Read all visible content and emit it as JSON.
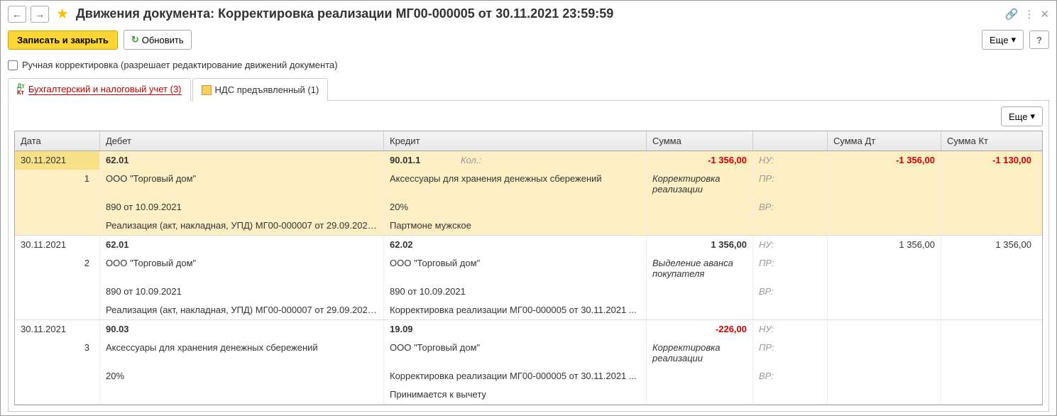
{
  "title": "Движения документа: Корректировка реализации МГ00-000005 от 30.11.2021 23:59:59",
  "toolbar": {
    "save_close": "Записать и закрыть",
    "refresh": "Обновить",
    "more": "Еще",
    "help": "?"
  },
  "checkbox_label": "Ручная корректировка (разрешает редактирование движений документа)",
  "tabs": {
    "tab1": "Бухгалтерский и налоговый учет (3)",
    "tab2": "НДС предъявленный (1)"
  },
  "panel_more": "Еще",
  "headers": {
    "date": "Дата",
    "debit": "Дебет",
    "credit": "Кредит",
    "sum": "Сумма",
    "sumdt": "Сумма Дт",
    "sumkt": "Сумма Кт"
  },
  "labels": {
    "nu": "НУ:",
    "pr": "ПР:",
    "vr": "ВР:",
    "kol": "Кол.:"
  },
  "entries": [
    {
      "date": "30.11.2021",
      "num": "1",
      "deb_acc": "62.01",
      "cre_acc": "90.01.1",
      "sum": "-1 356,00",
      "sumdt": "-1 356,00",
      "sumkt": "-1 130,00",
      "neg": true,
      "op": "Корректировка реализации",
      "d1": "ООО \"Торговый дом\"",
      "c1": "Аксессуары для хранения денежных сбережений",
      "d2": "890 от 10.09.2021",
      "c2": "20%",
      "d3": "Реализация (акт, накладная, УПД) МГ00-000007 от 29.09.2021...",
      "c3": "Партмоне мужское",
      "show_kol": true
    },
    {
      "date": "30.11.2021",
      "num": "2",
      "deb_acc": "62.01",
      "cre_acc": "62.02",
      "sum": "1 356,00",
      "sumdt": "1 356,00",
      "sumkt": "1 356,00",
      "neg": false,
      "op": "Выделение аванса покупателя",
      "d1": "ООО \"Торговый дом\"",
      "c1": "ООО \"Торговый дом\"",
      "d2": "890 от 10.09.2021",
      "c2": "890 от 10.09.2021",
      "d3": "Реализация (акт, накладная, УПД) МГ00-000007 от 29.09.2021...",
      "c3": "Корректировка реализации МГ00-000005 от 30.11.2021 ..."
    },
    {
      "date": "30.11.2021",
      "num": "3",
      "deb_acc": "90.03",
      "cre_acc": "19.09",
      "sum": "-226,00",
      "sumdt": "",
      "sumkt": "",
      "neg": true,
      "op": "Корректировка реализации",
      "d1": "Аксессуары для хранения денежных сбережений",
      "c1": "ООО \"Торговый дом\"",
      "d2": "20%",
      "c2": "Корректировка реализации МГ00-000005 от 30.11.2021 ...",
      "d3": "",
      "c3": "Принимается к вычету"
    }
  ]
}
